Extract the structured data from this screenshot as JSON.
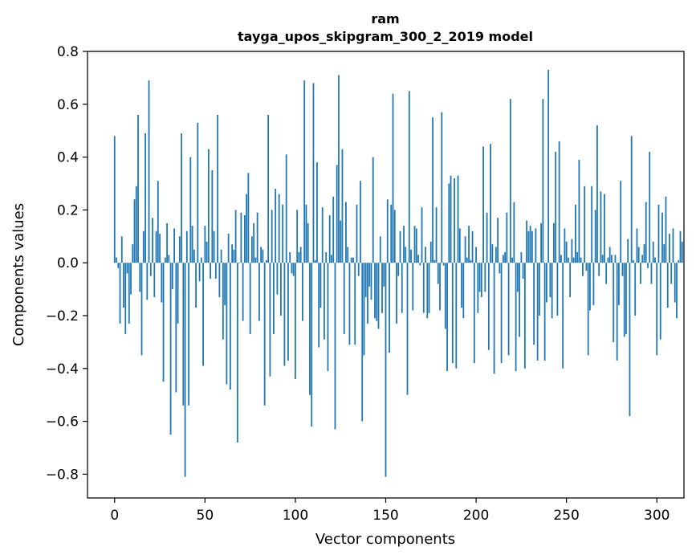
{
  "chart_data": {
    "type": "bar",
    "title": "ram",
    "subtitle": "tayga_upos_skipgram_300_2_2019 model",
    "xlabel": "Vector components",
    "ylabel": "Components values",
    "xlim": [
      -15,
      315
    ],
    "ylim": [
      -0.89,
      0.8
    ],
    "xticks": [
      0,
      50,
      100,
      150,
      200,
      250,
      300
    ],
    "xtick_labels": [
      "0",
      "50",
      "100",
      "150",
      "200",
      "250",
      "300"
    ],
    "yticks": [
      -0.8,
      -0.6,
      -0.4,
      -0.2,
      0.0,
      0.2,
      0.4,
      0.6,
      0.8
    ],
    "ytick_labels": [
      "−0.8",
      "−0.6",
      "−0.4",
      "−0.2",
      "0.0",
      "0.2",
      "0.4",
      "0.6",
      "0.8"
    ],
    "bar_color": "#1f77b4",
    "grid": false,
    "values": [
      0.48,
      0.02,
      -0.02,
      -0.23,
      0.1,
      -0.17,
      -0.27,
      -0.04,
      -0.23,
      -0.12,
      0.07,
      0.24,
      0.29,
      0.56,
      -0.11,
      -0.35,
      0.12,
      0.49,
      -0.14,
      0.69,
      -0.05,
      0.17,
      -0.13,
      0.12,
      0.31,
      0.11,
      -0.15,
      -0.45,
      0.02,
      0.15,
      0.03,
      -0.65,
      -0.1,
      0.13,
      -0.49,
      -0.23,
      0.1,
      0.49,
      -0.54,
      -0.81,
      0.12,
      -0.54,
      0.4,
      0.14,
      0.05,
      -0.17,
      0.53,
      -0.07,
      0.02,
      -0.39,
      0.14,
      0.08,
      0.43,
      -0.06,
      0.35,
      0.12,
      -0.06,
      0.56,
      -0.13,
      0.05,
      -0.29,
      -0.16,
      -0.46,
      0.11,
      -0.48,
      0.07,
      0.05,
      0.2,
      -0.68,
      0.0,
      0.19,
      -0.22,
      0.18,
      0.26,
      0.34,
      -0.27,
      0.1,
      0.15,
      0.02,
      0.19,
      -0.22,
      0.06,
      0.05,
      -0.54,
      0.01,
      0.56,
      -0.43,
      0.2,
      -0.27,
      0.28,
      -0.12,
      0.26,
      -0.2,
      0.22,
      -0.39,
      0.41,
      -0.37,
      0.04,
      -0.04,
      -0.05,
      -0.44,
      0.2,
      0.04,
      0.06,
      -0.22,
      0.69,
      0.22,
      0.15,
      -0.5,
      -0.62,
      0.68,
      0.01,
      0.38,
      -0.32,
      -0.17,
      0.21,
      -0.29,
      0.04,
      -0.41,
      0.18,
      0.03,
      0.25,
      -0.63,
      0.37,
      0.71,
      0.16,
      0.43,
      -0.27,
      0.23,
      0.06,
      -0.31,
      0.02,
      0.02,
      -0.31,
      0.22,
      -0.05,
      0.31,
      -0.6,
      -0.35,
      -0.13,
      -0.23,
      -0.09,
      -0.14,
      0.4,
      -0.21,
      -0.22,
      -0.25,
      0.1,
      -0.19,
      -0.09,
      -0.81,
      0.24,
      -0.34,
      0.22,
      0.64,
      0.2,
      -0.23,
      -0.05,
      0.12,
      -0.19,
      0.14,
      0.06,
      -0.5,
      0.65,
      0.05,
      -0.18,
      0.14,
      0.13,
      0.03,
      -0.01,
      0.21,
      -0.19,
      0.06,
      -0.21,
      -0.19,
      0.08,
      0.55,
      0.01,
      0.21,
      -0.08,
      -0.18,
      0.57,
      -0.01,
      -0.25,
      -0.41,
      0.3,
      0.33,
      -0.38,
      0.32,
      -0.4,
      0.33,
      0.13,
      -0.17,
      -0.21,
      0.1,
      0.02,
      0.14,
      0.01,
      0.12,
      -0.38,
      0.06,
      -0.19,
      -0.11,
      -0.13,
      0.44,
      -0.11,
      0.19,
      -0.33,
      0.45,
      0.07,
      -0.42,
      0.06,
      0.17,
      -0.04,
      -0.38,
      0.03,
      0.04,
      0.19,
      -0.35,
      0.62,
      0.02,
      0.23,
      -0.41,
      -0.11,
      -0.28,
      0.04,
      -0.06,
      -0.4,
      0.16,
      0.12,
      0.14,
      0.12,
      -0.31,
      0.13,
      -0.37,
      -0.2,
      0.15,
      0.62,
      -0.37,
      -0.15,
      0.73,
      -0.13,
      -0.21,
      0.15,
      0.42,
      -0.2,
      0.46,
      0.03,
      -0.4,
      0.13,
      0.08,
      0.02,
      -0.13,
      0.09,
      0.02,
      0.22,
      0.04,
      0.39,
      0.02,
      -0.05,
      0.29,
      -0.03,
      -0.35,
      -0.18,
      0.29,
      -0.16,
      0.2,
      0.52,
      -0.05,
      0.27,
      0.03,
      0.26,
      -0.08,
      0.02,
      0.06,
      0.03,
      -0.3,
      0.03,
      -0.37,
      -0.16,
      0.31,
      -0.05,
      -0.28,
      -0.27,
      0.09,
      -0.58,
      0.48,
      0.01,
      -0.2,
      0.13,
      0.06,
      -0.08,
      0.03,
      0.07,
      0.23,
      -0.02,
      0.42,
      -0.08,
      0.08,
      0.02,
      -0.35,
      0.22,
      -0.29,
      0.19,
      0.07,
      0.25,
      -0.17,
      0.11,
      -0.08,
      0.13,
      -0.15,
      -0.21,
      0.01,
      0.12,
      0.08
    ]
  }
}
